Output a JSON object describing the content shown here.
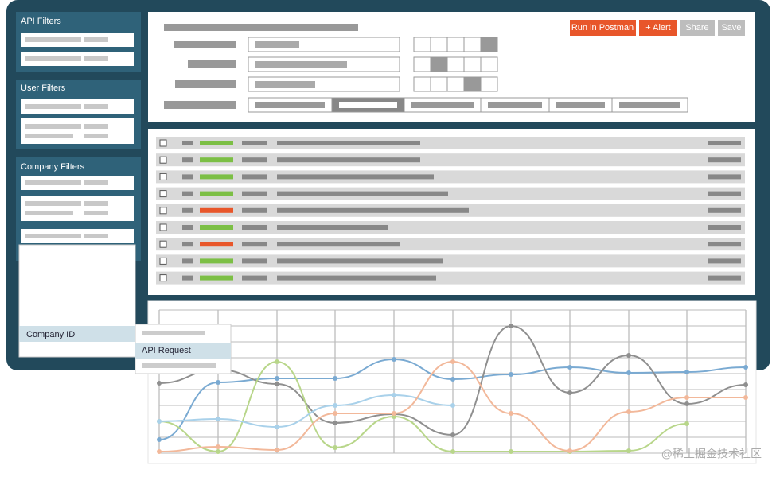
{
  "sidebar": {
    "sections": [
      {
        "title": "API Filters"
      },
      {
        "title": "User Filters"
      },
      {
        "title": "Company Filters"
      }
    ],
    "dropdown": {
      "selected": "Company ID",
      "submenu": "API Request"
    }
  },
  "toolbar": {
    "buttons": [
      "Run in Postman",
      "+ Alert",
      "Share",
      "Save"
    ]
  },
  "watermark": "@稀土掘金技术社区"
}
